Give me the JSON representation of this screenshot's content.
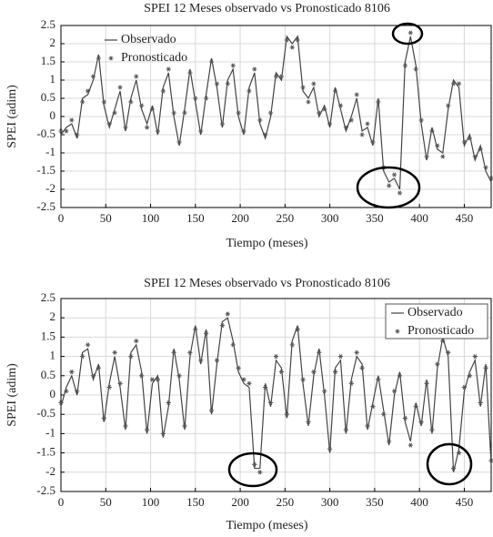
{
  "chart_data": [
    {
      "type": "line",
      "title": "SPEI 12 Meses observado vs Pronosticado 8106",
      "xlabel": "Tiempo (meses)",
      "ylabel": "SPEI (adim)",
      "xlim": [
        0,
        480
      ],
      "xticks": [
        0,
        50,
        100,
        150,
        200,
        250,
        300,
        350,
        400,
        450
      ],
      "ylim": [
        -2.5,
        2.5
      ],
      "yticks": [
        -2.5,
        -2,
        -1.5,
        -1,
        -0.5,
        0,
        0.5,
        1,
        1.5,
        2,
        2.5
      ],
      "grid": true,
      "legend": "upper left",
      "x": [
        0,
        6,
        12,
        18,
        24,
        30,
        36,
        42,
        48,
        54,
        60,
        66,
        72,
        78,
        84,
        90,
        96,
        102,
        108,
        114,
        120,
        126,
        132,
        138,
        144,
        150,
        156,
        162,
        168,
        174,
        180,
        186,
        192,
        198,
        204,
        210,
        216,
        222,
        228,
        234,
        240,
        246,
        252,
        258,
        264,
        270,
        276,
        282,
        288,
        294,
        300,
        306,
        312,
        318,
        324,
        330,
        336,
        342,
        348,
        354,
        360,
        366,
        372,
        378,
        384,
        390,
        396,
        402,
        408,
        414,
        420,
        426,
        432,
        438,
        444,
        450,
        456,
        462,
        468,
        474,
        480
      ],
      "series": [
        {
          "name": "Observado",
          "color": "#444444",
          "values": [
            -0.5,
            -0.3,
            -0.2,
            -0.6,
            0.5,
            0.6,
            1.0,
            1.7,
            0.3,
            -0.3,
            0.2,
            0.7,
            -0.4,
            0.5,
            1.0,
            0.2,
            -0.2,
            0.3,
            -0.5,
            0.8,
            1.2,
            0.0,
            -0.8,
            0.2,
            1.3,
            0.4,
            -0.5,
            0.6,
            1.6,
            0.8,
            -0.3,
            1.0,
            1.3,
            0.0,
            -0.5,
            0.8,
            1.2,
            -0.2,
            -0.6,
            0.0,
            1.2,
            1.0,
            2.2,
            2.0,
            2.2,
            0.7,
            0.5,
            0.8,
            0.0,
            0.3,
            -0.3,
            0.8,
            0.2,
            -0.4,
            0.0,
            0.5,
            -0.4,
            -0.3,
            -0.8,
            0.5,
            -1.5,
            -1.8,
            -1.7,
            -2.0,
            1.5,
            2.2,
            1.4,
            -0.2,
            -1.2,
            -0.3,
            -0.9,
            -1.0,
            0.2,
            1.0,
            0.8,
            -0.8,
            -0.5,
            -1.2,
            -0.8,
            -1.5,
            -1.8
          ]
        },
        {
          "name": "Pronosticado",
          "color": "#555555",
          "values": [
            -0.4,
            -0.4,
            -0.1,
            -0.5,
            0.4,
            0.7,
            1.1,
            1.6,
            0.4,
            -0.2,
            0.1,
            0.8,
            -0.3,
            0.4,
            1.1,
            0.3,
            -0.3,
            0.2,
            -0.4,
            0.7,
            1.3,
            0.1,
            -0.7,
            0.1,
            1.2,
            0.5,
            -0.4,
            0.5,
            1.5,
            0.9,
            -0.2,
            0.9,
            1.4,
            0.1,
            -0.4,
            0.7,
            1.3,
            -0.1,
            -0.5,
            0.1,
            1.1,
            1.1,
            2.1,
            1.9,
            2.1,
            0.8,
            0.4,
            0.9,
            0.1,
            0.2,
            -0.2,
            0.7,
            0.3,
            -0.3,
            -0.1,
            0.6,
            -0.5,
            -0.2,
            -0.7,
            0.4,
            -1.4,
            -1.9,
            -1.6,
            -2.1,
            1.4,
            2.3,
            1.3,
            -0.1,
            -1.1,
            -0.4,
            -0.8,
            -1.1,
            0.3,
            0.9,
            0.9,
            -0.7,
            -0.6,
            -1.1,
            -0.9,
            -1.4,
            -1.7
          ]
        }
      ]
    },
    {
      "type": "line",
      "title": "SPEI 12 Meses observado vs Pronosticado 8106",
      "xlabel": "Tiempo (meses)",
      "ylabel": "SPEI (adim)",
      "xlim": [
        0,
        480
      ],
      "xticks": [
        0,
        50,
        100,
        150,
        200,
        250,
        300,
        350,
        400,
        450
      ],
      "ylim": [
        -2.5,
        2.5
      ],
      "yticks": [
        -2.5,
        -2,
        -1.5,
        -1,
        -0.5,
        0,
        0.5,
        1,
        1.5,
        2,
        2.5
      ],
      "grid": true,
      "legend": "upper right",
      "x": [
        0,
        6,
        12,
        18,
        24,
        30,
        36,
        42,
        48,
        54,
        60,
        66,
        72,
        78,
        84,
        90,
        96,
        102,
        108,
        114,
        120,
        126,
        132,
        138,
        144,
        150,
        156,
        162,
        168,
        174,
        180,
        186,
        192,
        198,
        204,
        210,
        216,
        222,
        228,
        234,
        240,
        246,
        252,
        258,
        264,
        270,
        276,
        282,
        288,
        294,
        300,
        306,
        312,
        318,
        324,
        330,
        336,
        342,
        348,
        354,
        360,
        366,
        372,
        378,
        384,
        390,
        396,
        402,
        408,
        414,
        420,
        426,
        432,
        438,
        444,
        450,
        456,
        462,
        468,
        474,
        480
      ],
      "series": [
        {
          "name": "Observado",
          "color": "#444444",
          "values": [
            -0.3,
            0.2,
            0.5,
            0.0,
            1.1,
            1.2,
            0.4,
            0.8,
            -0.7,
            0.3,
            1.0,
            0.2,
            -0.9,
            1.1,
            1.3,
            0.6,
            -1.0,
            0.3,
            0.5,
            -1.1,
            -0.3,
            1.2,
            0.4,
            -0.9,
            1.0,
            1.8,
            0.8,
            1.7,
            -0.5,
            0.8,
            1.9,
            2.0,
            1.4,
            0.6,
            0.3,
            0.2,
            -1.9,
            -1.9,
            0.3,
            -0.3,
            0.9,
            0.7,
            -0.6,
            1.4,
            1.8,
            0.3,
            -0.8,
            0.5,
            1.2,
            0.0,
            -1.5,
            0.7,
            0.9,
            -1.0,
            0.4,
            1.0,
            0.8,
            -0.9,
            -0.2,
            0.5,
            -0.4,
            -1.3,
            0.0,
            0.6,
            -0.7,
            -1.2,
            -0.2,
            -0.8,
            0.4,
            -1.0,
            0.7,
            1.5,
            1.0,
            -2.0,
            -1.4,
            0.1,
            0.6,
            0.9,
            -0.3,
            0.8,
            -1.8
          ]
        },
        {
          "name": "Pronosticado",
          "color": "#555555",
          "values": [
            -0.2,
            0.1,
            0.6,
            0.1,
            1.0,
            1.3,
            0.5,
            0.7,
            -0.6,
            0.2,
            1.1,
            0.3,
            -0.8,
            1.0,
            1.4,
            0.5,
            -0.9,
            0.4,
            0.4,
            -1.0,
            -0.2,
            1.1,
            0.5,
            -0.8,
            1.1,
            1.7,
            0.9,
            1.6,
            -0.4,
            0.9,
            1.8,
            2.1,
            1.3,
            0.7,
            0.4,
            0.3,
            -1.8,
            -2.0,
            0.2,
            -0.2,
            1.0,
            0.6,
            -0.5,
            1.3,
            1.7,
            0.4,
            -0.7,
            0.6,
            1.1,
            0.1,
            -1.4,
            0.6,
            1.0,
            -0.9,
            0.3,
            1.1,
            0.7,
            -0.8,
            -0.3,
            0.4,
            -0.5,
            -1.2,
            0.1,
            0.5,
            -0.6,
            -1.3,
            -0.3,
            -0.7,
            0.3,
            -0.9,
            0.8,
            1.4,
            1.1,
            -1.9,
            -1.5,
            0.2,
            0.5,
            1.0,
            -0.2,
            0.7,
            -1.7
          ]
        }
      ]
    }
  ]
}
